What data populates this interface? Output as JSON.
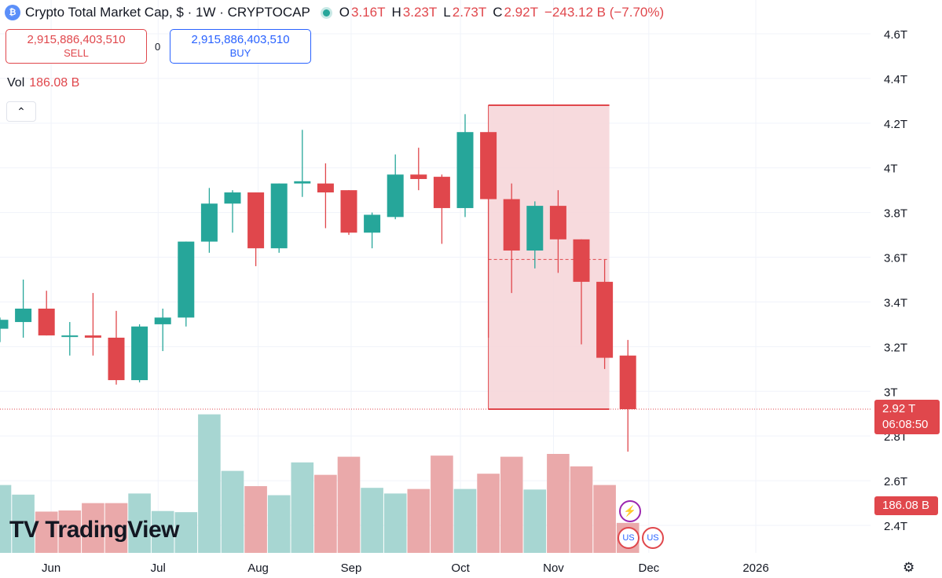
{
  "header": {
    "logo_glyph": "₿",
    "title": "Crypto Total Market Cap, $ · 1W · CRYPTOCAP",
    "ohlc": [
      {
        "label": "O",
        "value": "3.16T"
      },
      {
        "label": "H",
        "value": "3.23T"
      },
      {
        "label": "L",
        "value": "2.73T"
      },
      {
        "label": "C",
        "value": "2.92T"
      }
    ],
    "change": "−243.12 B (−7.70%)"
  },
  "trade": {
    "sell_price": "2,915,886,403,510",
    "sell_label": "SELL",
    "spread": "0",
    "buy_price": "2,915,886,403,510",
    "buy_label": "BUY"
  },
  "volume": {
    "label": "Vol",
    "value": "186.08 B"
  },
  "collapse_icon": "chevron-up-icon",
  "collapse_glyph": "⌃",
  "price_tag": {
    "price": "2.92 T",
    "countdown": "06:08:50"
  },
  "volume_tag": "186.08 B",
  "brand": {
    "mark": "TV",
    "name": "TradingView"
  },
  "events": {
    "bolt_glyph": "⚡",
    "flag_glyph": "US"
  },
  "settings_glyph": "⚙",
  "colors": {
    "up": "#26a69a",
    "down": "#e0474c",
    "up_vol": "#a7d6d2",
    "down_vol": "#eaa9aa",
    "range_fill": "#f6d4d7"
  },
  "chart_data": {
    "type": "candlestick",
    "title": "Crypto Total Market Cap, $ · 1W · CRYPTOCAP",
    "y_ticks": [
      "2.4T",
      "2.6T",
      "2.8T",
      "3T",
      "3.2T",
      "3.4T",
      "3.6T",
      "3.8T",
      "4T",
      "4.2T",
      "4.4T",
      "4.6T"
    ],
    "y_tick_values": [
      2.4,
      2.6,
      2.8,
      3.0,
      3.2,
      3.4,
      3.6,
      3.8,
      4.0,
      4.2,
      4.4,
      4.6
    ],
    "ylim": [
      2.33,
      4.74
    ],
    "x_ticks": [
      "Jun",
      "Jul",
      "Aug",
      "Sep",
      "Oct",
      "Nov",
      "Dec",
      "2026"
    ],
    "x_tick_weeks": [
      2.2,
      6.8,
      11.1,
      15.1,
      19.8,
      23.8,
      27.9,
      32.5
    ],
    "candles": [
      {
        "o": 3.28,
        "h": 3.33,
        "l": 3.22,
        "c": 3.32
      },
      {
        "o": 3.31,
        "h": 3.5,
        "l": 3.24,
        "c": 3.37
      },
      {
        "o": 3.37,
        "h": 3.45,
        "l": 3.25,
        "c": 3.25
      },
      {
        "o": 3.25,
        "h": 3.31,
        "l": 3.16,
        "c": 3.25
      },
      {
        "o": 3.25,
        "h": 3.44,
        "l": 3.16,
        "c": 3.24
      },
      {
        "o": 3.24,
        "h": 3.36,
        "l": 3.03,
        "c": 3.05
      },
      {
        "o": 3.05,
        "h": 3.3,
        "l": 3.04,
        "c": 3.29
      },
      {
        "o": 3.3,
        "h": 3.37,
        "l": 3.18,
        "c": 3.33
      },
      {
        "o": 3.33,
        "h": 3.67,
        "l": 3.29,
        "c": 3.67
      },
      {
        "o": 3.67,
        "h": 3.91,
        "l": 3.62,
        "c": 3.84
      },
      {
        "o": 3.84,
        "h": 3.9,
        "l": 3.71,
        "c": 3.89
      },
      {
        "o": 3.89,
        "h": 3.89,
        "l": 3.56,
        "c": 3.64
      },
      {
        "o": 3.64,
        "h": 3.93,
        "l": 3.62,
        "c": 3.93
      },
      {
        "o": 3.93,
        "h": 4.17,
        "l": 3.87,
        "c": 3.94
      },
      {
        "o": 3.93,
        "h": 4.02,
        "l": 3.73,
        "c": 3.89
      },
      {
        "o": 3.9,
        "h": 3.9,
        "l": 3.7,
        "c": 3.71
      },
      {
        "o": 3.71,
        "h": 3.8,
        "l": 3.64,
        "c": 3.79
      },
      {
        "o": 3.78,
        "h": 4.06,
        "l": 3.77,
        "c": 3.97
      },
      {
        "o": 3.97,
        "h": 4.09,
        "l": 3.9,
        "c": 3.95
      },
      {
        "o": 3.96,
        "h": 3.97,
        "l": 3.66,
        "c": 3.82
      },
      {
        "o": 3.82,
        "h": 4.24,
        "l": 3.78,
        "c": 4.16
      },
      {
        "o": 4.16,
        "h": 4.16,
        "l": 3.24,
        "c": 3.86
      },
      {
        "o": 3.86,
        "h": 3.93,
        "l": 3.44,
        "c": 3.63
      },
      {
        "o": 3.63,
        "h": 3.85,
        "l": 3.55,
        "c": 3.83
      },
      {
        "o": 3.83,
        "h": 3.9,
        "l": 3.53,
        "c": 3.68
      },
      {
        "o": 3.68,
        "h": 3.68,
        "l": 3.21,
        "c": 3.49
      },
      {
        "o": 3.49,
        "h": 3.59,
        "l": 3.1,
        "c": 3.15
      },
      {
        "o": 3.16,
        "h": 3.23,
        "l": 2.73,
        "c": 2.92
      }
    ],
    "volume": [
      {
        "v": 1.2,
        "up": true
      },
      {
        "v": 1.03,
        "up": true
      },
      {
        "v": 0.73,
        "up": false
      },
      {
        "v": 0.75,
        "up": false
      },
      {
        "v": 0.88,
        "up": false
      },
      {
        "v": 0.88,
        "up": false
      },
      {
        "v": 1.05,
        "up": true
      },
      {
        "v": 0.74,
        "up": true
      },
      {
        "v": 0.72,
        "up": true
      },
      {
        "v": 2.45,
        "up": true
      },
      {
        "v": 1.45,
        "up": true
      },
      {
        "v": 1.18,
        "up": false
      },
      {
        "v": 1.02,
        "up": true
      },
      {
        "v": 1.6,
        "up": true
      },
      {
        "v": 1.38,
        "up": false
      },
      {
        "v": 1.7,
        "up": false
      },
      {
        "v": 1.15,
        "up": true
      },
      {
        "v": 1.05,
        "up": true
      },
      {
        "v": 1.13,
        "up": false
      },
      {
        "v": 1.72,
        "up": false
      },
      {
        "v": 1.13,
        "up": true
      },
      {
        "v": 1.4,
        "up": false
      },
      {
        "v": 1.7,
        "up": false
      },
      {
        "v": 1.12,
        "up": true
      },
      {
        "v": 1.75,
        "up": false
      },
      {
        "v": 1.53,
        "up": false
      },
      {
        "v": 1.2,
        "up": false
      },
      {
        "v": 0.53,
        "up": false
      }
    ],
    "range_box": {
      "start_week": 21,
      "end_week": 26,
      "high": 4.28,
      "low": 2.92,
      "mid": 3.59
    },
    "last_price": 2.92
  }
}
